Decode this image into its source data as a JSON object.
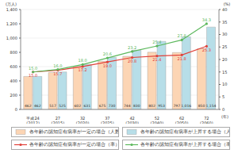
{
  "chart_data": {
    "type": "bar",
    "y_label": "(万人)",
    "y2_label": "(%)",
    "x_label": "(年)",
    "categories": [
      "平成24 (2012)",
      "27 (2015)",
      "32 (2020)",
      "37 (2025)",
      "42 (2030)",
      "52 (2040)",
      "62 (2050)",
      "72 (2060)"
    ],
    "series": [
      {
        "name": "各年齢の認知症有病率が一定の場合（人数）",
        "type": "bar",
        "axis": "y",
        "color": "#fcd5b4",
        "values": [
          462,
          517,
          602,
          675,
          744,
          802,
          797,
          850
        ]
      },
      {
        "name": "各年齢の認知症有病率が上昇する場合（人数）",
        "type": "bar",
        "axis": "y",
        "color": "#b7dee8",
        "values": [
          462,
          525,
          631,
          730,
          830,
          953,
          1016,
          1154
        ],
        "value_labels": [
          "462",
          "525",
          "631",
          "730",
          "830",
          "953",
          "1,016",
          "1,154"
        ]
      },
      {
        "name": "各年齢の認知症有病率が一定の場合（率）",
        "type": "line",
        "axis": "y2",
        "color": "#e0413a",
        "marker": "circle",
        "values": [
          15.0,
          15.7,
          17.2,
          19.0,
          20.8,
          21.4,
          21.8,
          25.3
        ],
        "value_labels": [
          "15.0",
          "15.7",
          "17.2",
          "19.0",
          "20.8",
          "21.4",
          "21.8",
          "25.3"
        ]
      },
      {
        "name": "各年齢の認知症有病率が上昇する場合（率）",
        "type": "line",
        "axis": "y2",
        "color": "#5cb85c",
        "marker": "circle",
        "values": [
          15.0,
          16.0,
          18.0,
          20.6,
          23.2,
          25.4,
          27.8,
          34.3
        ],
        "value_labels": [
          "15.0",
          "16.0",
          "18.0",
          "20.6",
          "23.2",
          "25.4",
          "27.8",
          "34.3"
        ]
      }
    ],
    "ylim": [
      0,
      1400
    ],
    "yticks": [
      0,
      200,
      400,
      600,
      800,
      {
        "value": 1000,
        "label": "1,000"
      },
      {
        "value": 1200,
        "label": "1,200"
      },
      {
        "value": 1400,
        "label": "1,400"
      }
    ],
    "y2lim": [
      0,
      40
    ],
    "y2ticks": [
      0,
      5,
      10,
      15,
      20,
      25,
      30,
      35,
      40
    ],
    "grid": true,
    "legend": "bottom",
    "data_labels": true
  }
}
